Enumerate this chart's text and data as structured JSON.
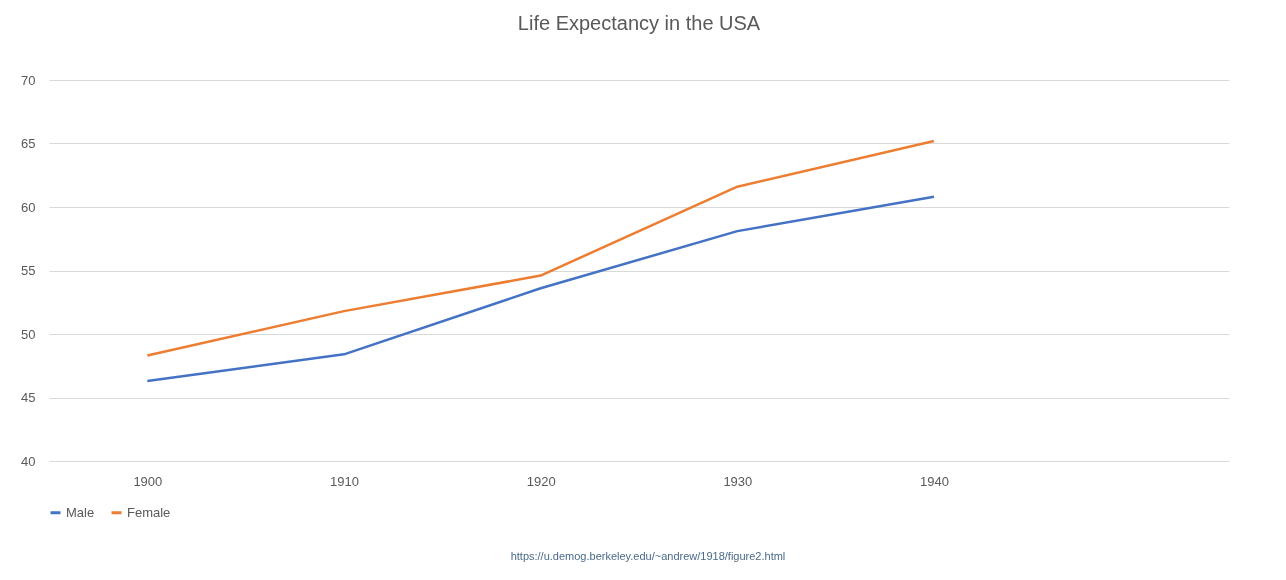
{
  "chart_data": {
    "type": "line",
    "title": "Life Expectancy in the USA",
    "categories": [
      "1900",
      "1910",
      "1920",
      "1930",
      "1940",
      null
    ],
    "series": [
      {
        "name": "Male",
        "color": "#4472c4",
        "values": [
          46.3,
          48.4,
          53.6,
          58.1,
          60.8,
          null
        ]
      },
      {
        "name": "Female",
        "color": "#ed7d31",
        "values": [
          48.3,
          51.8,
          54.6,
          61.6,
          65.2,
          null
        ]
      }
    ],
    "ylim": [
      40,
      70
    ],
    "yticks": [
      40,
      45,
      50,
      55,
      60,
      65,
      70
    ],
    "grid": "y",
    "legend": "bottom",
    "marker": "none",
    "line_style": "solid",
    "annotations": [
      "https://u.demog.berkeley.edu/~andrew/1918/figure2.html"
    ]
  }
}
